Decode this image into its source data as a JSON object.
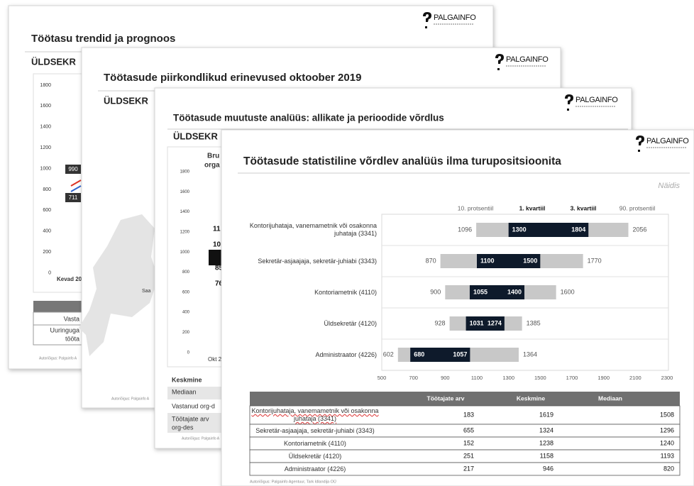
{
  "pages": [
    {
      "logo": "PALGAINFO",
      "title": "Töötasu trendid ja prognoos",
      "subtitle": "ÜLDSEKR",
      "yticks": [
        1800,
        1600,
        1400,
        1200,
        1000,
        800,
        600,
        400,
        200,
        0
      ],
      "labels": [
        990,
        711
      ],
      "xlabel": "Kevad 20",
      "table": [
        "Vasta",
        "Uuringuga",
        "tööta"
      ],
      "footer": "Autoriõigus: Palgainfo A"
    },
    {
      "logo": "PALGAINFO",
      "title": "Töötasude piirkondlikud erinevused oktoober 2019",
      "subtitle": "ÜLDSEKR",
      "map_label": "Saa",
      "footer": "Autoriõigus: Palgainfo A"
    },
    {
      "logo": "PALGAINFO",
      "title": "Töötasude muutuste analüüs: allikate ja perioodide võrdlus",
      "subtitle": "ÜLDSEKR",
      "chart_title": [
        "Bru",
        "orga"
      ],
      "yticks": [
        1800,
        1600,
        1400,
        1200,
        1000,
        800,
        600,
        400,
        200,
        0
      ],
      "labels": [
        11,
        10,
        85,
        76
      ],
      "xlabel": "Okt 2",
      "table": [
        "Keskmine",
        "Mediaan",
        "Vastanud org-d",
        "Töötajate arv",
        "org-des"
      ],
      "footer": "Autoriõigus: Palgainfo A"
    }
  ],
  "logo": "PALGAINFO",
  "chart_data": {
    "type": "range_bar",
    "title": "Töötasude statistiline võrdlev analüüs ilma turupositsioonita",
    "note": "Näidis",
    "categories": [
      "Kontorijuhataja, vanemametnik või osakonna juhataja (3341)",
      "Sekretär-asjaajaja, sekretär-juhiabi (3343)",
      "Kontoriametnik (4110)",
      "Üldsekretär (4120)",
      "Administraator (4226)"
    ],
    "series": [
      {
        "name": "10. protsentiil",
        "color": "#c8c8c8",
        "values": [
          1096,
          870,
          900,
          928,
          602
        ]
      },
      {
        "name": "1. kvartiil",
        "color": "#0e1a2b",
        "values": [
          1300,
          1100,
          1055,
          1031,
          680
        ]
      },
      {
        "name": "3. kvartiil",
        "color": "#0e1a2b",
        "values": [
          1804,
          1500,
          1400,
          1274,
          1057
        ]
      },
      {
        "name": "90. protsentiil",
        "color": "#c8c8c8",
        "values": [
          2056,
          1770,
          1600,
          1385,
          1364
        ]
      }
    ],
    "xlim": [
      500,
      2300
    ],
    "xticks": [
      500,
      700,
      900,
      1100,
      1300,
      1500,
      1700,
      1900,
      2100,
      2300
    ]
  },
  "table": {
    "columns": [
      "Töötajate arv",
      "Keskmine",
      "Mediaan"
    ],
    "rows": [
      [
        "Kontorijuhataja, vanemametnik või osakonna juhataja (3341)",
        183,
        1619,
        1508
      ],
      [
        "Sekretär-asjaajaja, sekretär-juhiabi (3343)",
        655,
        1324,
        1296
      ],
      [
        "Kontoriametnik (4110)",
        152,
        1238,
        1240
      ],
      [
        "Üldsekretär (4120)",
        251,
        1158,
        1193
      ],
      [
        "Administraator (4226)",
        217,
        946,
        820
      ]
    ]
  },
  "footer": "Autoriõigus: Palgainfo Agentuur, Tark Idlandija OÜ"
}
